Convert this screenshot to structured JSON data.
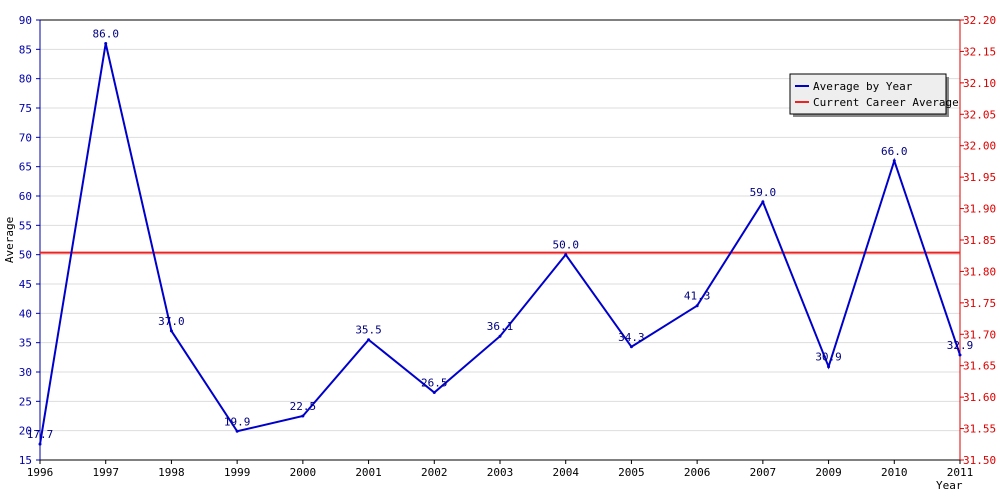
{
  "chart_data": {
    "type": "line",
    "title": "",
    "xlabel": "Year",
    "ylabel": "Average",
    "categories": [
      "1996",
      "1997",
      "1998",
      "1999",
      "2000",
      "2001",
      "2002",
      "2003",
      "2004",
      "2005",
      "2006",
      "2007",
      "2009",
      "2010",
      "2011"
    ],
    "y_left": {
      "range": [
        15,
        90
      ],
      "ticks": [
        "15",
        "20",
        "25",
        "30",
        "35",
        "40",
        "45",
        "50",
        "55",
        "60",
        "65",
        "70",
        "75",
        "80",
        "85",
        "90"
      ]
    },
    "y_right": {
      "range": [
        31.5,
        32.2
      ],
      "ticks": [
        "31.50",
        "31.55",
        "31.60",
        "31.65",
        "31.70",
        "31.75",
        "31.80",
        "31.85",
        "31.90",
        "31.95",
        "32.00",
        "32.05",
        "32.10",
        "32.15",
        "32.20"
      ]
    },
    "series": [
      {
        "name": "Average by Year",
        "axis": "left",
        "color": "#0000cc",
        "values": [
          17.7,
          86.0,
          37.0,
          19.9,
          22.5,
          35.5,
          26.5,
          36.1,
          50.0,
          34.3,
          41.3,
          59.0,
          30.9,
          66.0,
          32.9
        ],
        "labels": [
          "17.7",
          "86.0",
          "37.0",
          "19.9",
          "22.5",
          "35.5",
          "26.5",
          "36.1",
          "50.0",
          "34.3",
          "41.3",
          "59.0",
          "30.9",
          "66.0",
          "32.9"
        ]
      },
      {
        "name": "Current Career Average",
        "axis": "right",
        "color": "#ee2222",
        "value": 31.83
      }
    ],
    "grid": true,
    "legend": {
      "placement": "top-right"
    },
    "colors": {
      "left_axis": "#0000aa",
      "right_axis": "#dd0000",
      "grid": "#dddddd",
      "frame": "#000000"
    }
  }
}
